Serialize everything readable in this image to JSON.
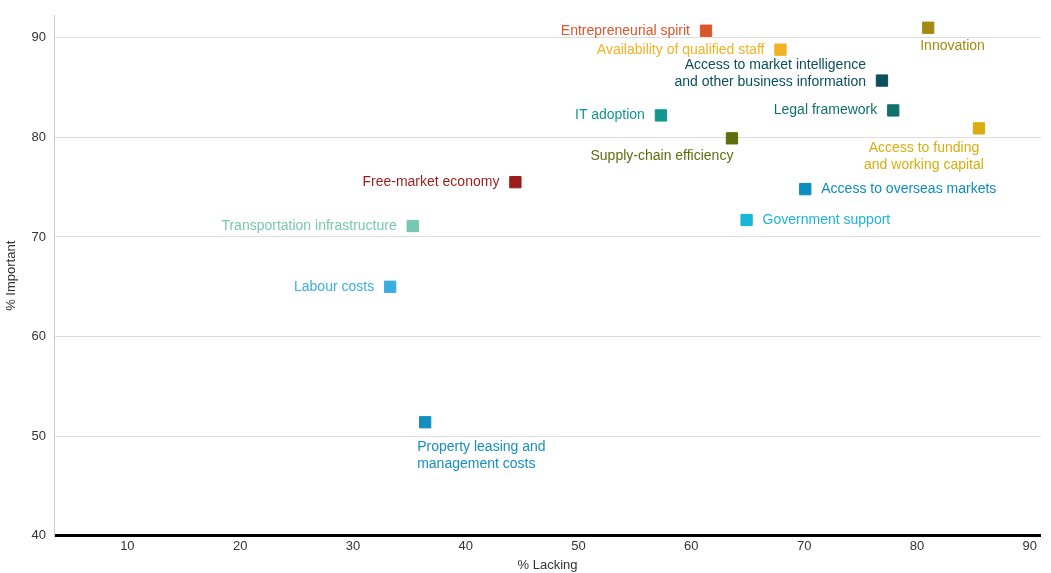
{
  "chart_data": {
    "type": "scatter",
    "xlabel": "% Lacking",
    "ylabel": "% Important",
    "xlim": [
      3.5,
      91
    ],
    "ylim": [
      40,
      92.2
    ],
    "xticks": [
      10,
      20,
      30,
      40,
      50,
      60,
      70,
      80,
      90
    ],
    "yticks": [
      40,
      50,
      60,
      70,
      80,
      90
    ],
    "grid": "y",
    "legend": false,
    "marker": "square",
    "series": [
      {
        "name": "Entrepreneurial spirit",
        "color": "#d9572b",
        "x": [
          61.3
        ],
        "values": [
          90.7
        ]
      },
      {
        "name": "Availability of qualified staff",
        "color": "#f0b323",
        "x": [
          67.9
        ],
        "values": [
          88.8
        ]
      },
      {
        "name": "Innovation",
        "color": "#a38a12",
        "x": [
          81.0
        ],
        "values": [
          91.0
        ]
      },
      {
        "name": "Access to market intelligence\nand other business information",
        "color": "#0b4f5c",
        "x": [
          76.9
        ],
        "values": [
          85.7
        ]
      },
      {
        "name": "Legal framework",
        "color": "#12716e",
        "x": [
          77.9
        ],
        "values": [
          82.7
        ]
      },
      {
        "name": "IT adoption",
        "color": "#12978e",
        "x": [
          57.3
        ],
        "values": [
          82.2
        ]
      },
      {
        "name": "Access to funding\nand working capital",
        "color": "#d9ad0f",
        "x": [
          85.5
        ],
        "values": [
          80.9
        ]
      },
      {
        "name": "Supply-chain efficiency",
        "color": "#5f6e0d",
        "x": [
          63.6
        ],
        "values": [
          79.9
        ]
      },
      {
        "name": "Free-market economy",
        "color": "#9c1c1c",
        "x": [
          44.4
        ],
        "values": [
          75.5
        ]
      },
      {
        "name": "Access to overseas markets",
        "color": "#0d8cc0",
        "x": [
          70.1
        ],
        "values": [
          74.8
        ]
      },
      {
        "name": "Government support",
        "color": "#1cb5d6",
        "x": [
          64.9
        ],
        "values": [
          71.7
        ]
      },
      {
        "name": "Transportation infrastructure",
        "color": "#79c7b0",
        "x": [
          35.3
        ],
        "values": [
          71.1
        ]
      },
      {
        "name": "Labour costs",
        "color": "#3aaee0",
        "x": [
          33.3
        ],
        "values": [
          65.0
        ]
      },
      {
        "name": "Property leasing and\nmanagement costs",
        "color": "#1490c0",
        "x": [
          36.4
        ],
        "values": [
          51.4
        ]
      }
    ]
  }
}
